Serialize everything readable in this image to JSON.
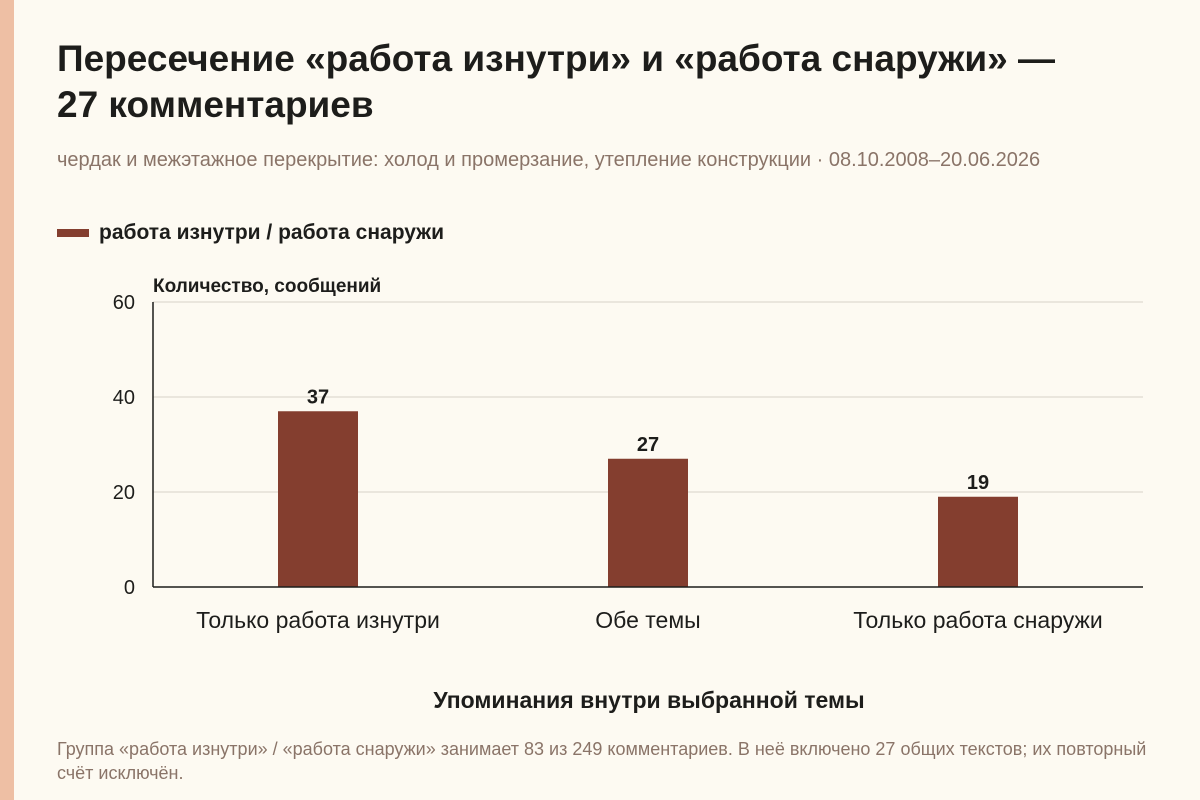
{
  "title": "Пересечение «работа изнутри» и «работа снаружи» — 27 комментариев",
  "subtitle": "чердак и межэтажное перекрытие: холод и промерзание, утепление конструкции · 08.10.2008–20.06.2026",
  "footnote": "Группа «работа изнутри» / «работа снаружи» занимает 83 из 249 комментариев. В неё включено 27 общих текстов; их повторный счёт исключён.",
  "colors": {
    "bar": "#843e2f",
    "grid": "#d8d3c8",
    "axis": "#1d1d1b",
    "accent": "#eebfa4",
    "background": "#fdfaf2"
  },
  "chart_data": {
    "type": "bar",
    "categories": [
      "Только работа изнутри",
      "Обе темы",
      "Только работа снаружи"
    ],
    "series": [
      {
        "name": "работа изнутри / работа снаружи",
        "values": [
          37,
          27,
          19
        ]
      }
    ],
    "value_labels": [
      "37",
      "27",
      "19"
    ],
    "ylabel": "Количество, сообщений",
    "xlabel": "Упоминания внутри выбранной темы",
    "ylim": [
      0,
      60
    ],
    "yticks": [
      0,
      20,
      40,
      60
    ],
    "grid": true,
    "legend": "top-left"
  }
}
